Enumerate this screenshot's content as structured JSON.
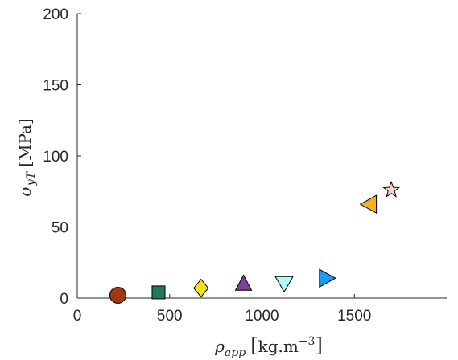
{
  "chart_data": {
    "type": "scatter",
    "title": "",
    "xlabel": "ρ_app [kg.m^-3]",
    "ylabel": "σ_yT [MPa]",
    "xlim": [
      0,
      2000
    ],
    "ylim": [
      0,
      200
    ],
    "x_ticks": [
      "0",
      "500",
      "1000",
      "1500"
    ],
    "y_ticks": [
      "0",
      "50",
      "100",
      "150",
      "200"
    ],
    "grid": false,
    "legend": "none",
    "points": [
      {
        "x": 220,
        "y": 2,
        "marker": "circle",
        "color": "#A0380F"
      },
      {
        "x": 440,
        "y": 4,
        "marker": "square",
        "color": "#1E7A55"
      },
      {
        "x": 670,
        "y": 7,
        "marker": "diamond",
        "color": "#EEE21C"
      },
      {
        "x": 900,
        "y": 10,
        "marker": "triangle-up",
        "color": "#7D3F98"
      },
      {
        "x": 1120,
        "y": 10,
        "marker": "triangle-down",
        "color": "#B3FBFB"
      },
      {
        "x": 1350,
        "y": 14,
        "marker": "triangle-right",
        "color": "#1A9AF2"
      },
      {
        "x": 1580,
        "y": 66,
        "marker": "triangle-left",
        "color": "#F7B31A"
      },
      {
        "x": 1700,
        "y": 76,
        "marker": "pentagram",
        "color": "#F9D3C7"
      }
    ]
  }
}
